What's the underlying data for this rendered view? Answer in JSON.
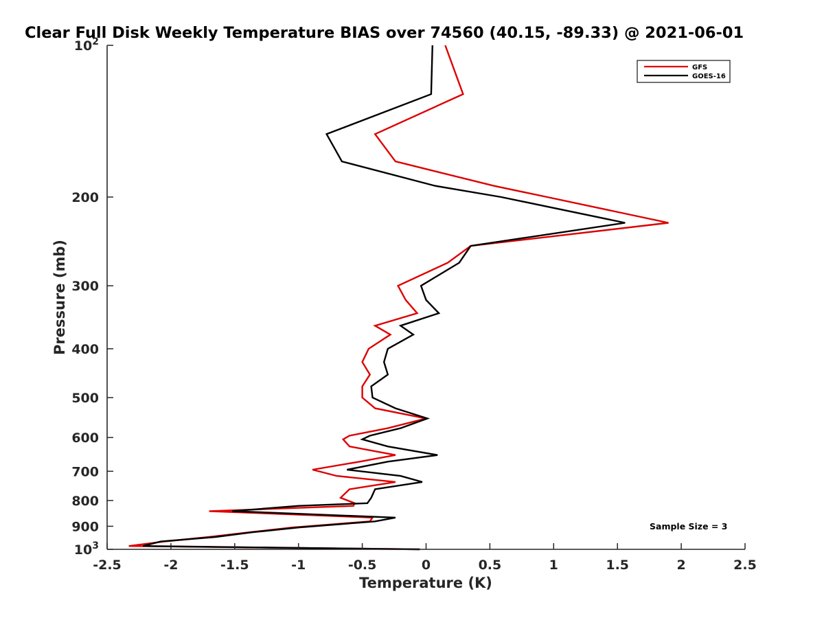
{
  "chart_data": {
    "type": "line",
    "title": "Clear Full Disk Weekly Temperature BIAS over 74560 (40.15, -89.33) @ 2021-06-01",
    "xlabel": "Temperature (K)",
    "ylabel": "Pressure (mb)",
    "xlim": [
      -2.5,
      2.5
    ],
    "ylim": [
      100,
      1000
    ],
    "y_scale": "log",
    "y_reversed": true,
    "grid": false,
    "legend_position": "top-right",
    "x_ticks": [
      {
        "value": -2.5,
        "label": "-2.5"
      },
      {
        "value": -2,
        "label": "-2"
      },
      {
        "value": -1.5,
        "label": "-1.5"
      },
      {
        "value": -1,
        "label": "-1"
      },
      {
        "value": -0.5,
        "label": "-0.5"
      },
      {
        "value": 0,
        "label": "0"
      },
      {
        "value": 0.5,
        "label": "0.5"
      },
      {
        "value": 1,
        "label": "1"
      },
      {
        "value": 1.5,
        "label": "1.5"
      },
      {
        "value": 2,
        "label": "2"
      },
      {
        "value": 2.5,
        "label": "2.5"
      }
    ],
    "y_ticks": [
      {
        "value": 100,
        "label": "10",
        "sup": "2"
      },
      {
        "value": 200,
        "label": "200"
      },
      {
        "value": 300,
        "label": "300"
      },
      {
        "value": 400,
        "label": "400"
      },
      {
        "value": 500,
        "label": "500"
      },
      {
        "value": 600,
        "label": "600"
      },
      {
        "value": 700,
        "label": "700"
      },
      {
        "value": 800,
        "label": "800"
      },
      {
        "value": 900,
        "label": "900"
      },
      {
        "value": 1000,
        "label": "10",
        "sup": "3"
      }
    ],
    "series": [
      {
        "name": "GFS",
        "color": "#dd0000",
        "points": [
          [
            0.15,
            100
          ],
          [
            0.29,
            125
          ],
          [
            -0.4,
            150
          ],
          [
            -0.24,
            170
          ],
          [
            0.53,
            190
          ],
          [
            0.95,
            200
          ],
          [
            1.9,
            225
          ],
          [
            0.35,
            250
          ],
          [
            0.17,
            270
          ],
          [
            -0.22,
            300
          ],
          [
            -0.16,
            320
          ],
          [
            -0.07,
            340
          ],
          [
            -0.4,
            360
          ],
          [
            -0.28,
            375
          ],
          [
            -0.45,
            400
          ],
          [
            -0.5,
            425
          ],
          [
            -0.44,
            450
          ],
          [
            -0.5,
            475
          ],
          [
            -0.5,
            500
          ],
          [
            -0.4,
            525
          ],
          [
            0.0,
            550
          ],
          [
            -0.3,
            575
          ],
          [
            -0.6,
            595
          ],
          [
            -0.65,
            605
          ],
          [
            -0.6,
            625
          ],
          [
            -0.24,
            650
          ],
          [
            -0.52,
            670
          ],
          [
            -0.89,
            695
          ],
          [
            -0.7,
            715
          ],
          [
            -0.24,
            735
          ],
          [
            -0.6,
            760
          ],
          [
            -0.67,
            790
          ],
          [
            -0.56,
            810
          ],
          [
            -0.57,
            820
          ],
          [
            -1.7,
            840
          ],
          [
            -0.42,
            865
          ],
          [
            -0.44,
            880
          ],
          [
            -1.05,
            905
          ],
          [
            -1.38,
            925
          ],
          [
            -1.7,
            945
          ],
          [
            -2.05,
            965
          ],
          [
            -2.33,
            985
          ],
          [
            -0.05,
            1000
          ]
        ]
      },
      {
        "name": "GOES-16",
        "color": "#000000",
        "points": [
          [
            0.05,
            100
          ],
          [
            0.04,
            125
          ],
          [
            -0.78,
            150
          ],
          [
            -0.66,
            170
          ],
          [
            0.07,
            190
          ],
          [
            0.59,
            200
          ],
          [
            1.56,
            225
          ],
          [
            0.35,
            250
          ],
          [
            0.26,
            270
          ],
          [
            -0.04,
            300
          ],
          [
            0.0,
            320
          ],
          [
            0.1,
            340
          ],
          [
            -0.2,
            360
          ],
          [
            -0.1,
            375
          ],
          [
            -0.3,
            400
          ],
          [
            -0.33,
            425
          ],
          [
            -0.3,
            450
          ],
          [
            -0.43,
            475
          ],
          [
            -0.42,
            500
          ],
          [
            -0.24,
            525
          ],
          [
            0.01,
            550
          ],
          [
            -0.2,
            575
          ],
          [
            -0.44,
            595
          ],
          [
            -0.5,
            605
          ],
          [
            -0.3,
            625
          ],
          [
            0.09,
            650
          ],
          [
            -0.3,
            670
          ],
          [
            -0.62,
            695
          ],
          [
            -0.2,
            715
          ],
          [
            -0.03,
            735
          ],
          [
            -0.4,
            760
          ],
          [
            -0.43,
            790
          ],
          [
            -0.46,
            810
          ],
          [
            -1.0,
            820
          ],
          [
            -1.52,
            840
          ],
          [
            -0.24,
            865
          ],
          [
            -0.4,
            880
          ],
          [
            -1.0,
            905
          ],
          [
            -1.36,
            925
          ],
          [
            -1.65,
            945
          ],
          [
            -2.08,
            965
          ],
          [
            -2.22,
            985
          ],
          [
            -0.05,
            1000
          ]
        ]
      }
    ],
    "annotations": [
      "Sample Size = 3"
    ]
  }
}
